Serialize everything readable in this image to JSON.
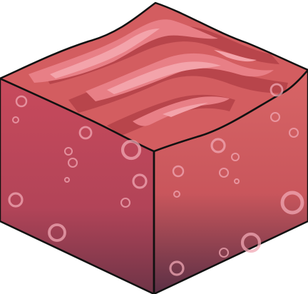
{
  "block": {
    "name": "meat-block",
    "colors": {
      "outline": "#111111",
      "top_base": "#d35d60",
      "top_stripe_dark": "#b8454b",
      "top_stripe_light": "#e87f86",
      "top_highlight": "#f3a3aa",
      "left_face_top": "#c84a5c",
      "left_face_bottom": "#6e3447",
      "right_face_top": "#d86566",
      "right_face_bottom": "#5a2f45",
      "bubble": "#f0a8b4"
    }
  }
}
